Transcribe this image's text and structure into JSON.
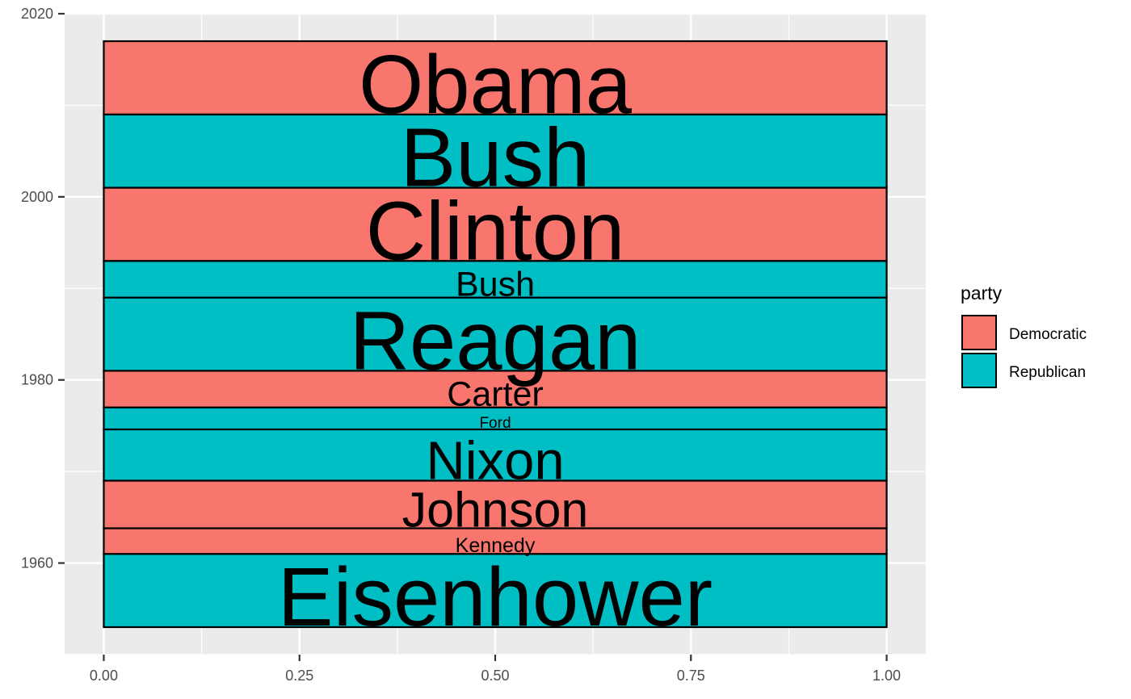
{
  "chart_data": {
    "type": "bar",
    "orientation": "horizontal-bands",
    "title": "",
    "xlabel": "",
    "ylabel": "",
    "xlim": [
      -0.05,
      1.05
    ],
    "ylim": [
      1950,
      2020
    ],
    "x_ticks": [
      0.0,
      0.25,
      0.5,
      0.75,
      1.0
    ],
    "x_tick_labels": [
      "0.00",
      "0.25",
      "0.50",
      "0.75",
      "1.00"
    ],
    "y_ticks": [
      1960,
      1980,
      2000,
      2020
    ],
    "y_tick_labels": [
      "1960",
      "1980",
      "2000",
      "2020"
    ],
    "grid": true,
    "legend": {
      "title": "party",
      "position": "right",
      "entries": [
        {
          "label": "Democratic",
          "color": "#F8766D"
        },
        {
          "label": "Republican",
          "color": "#00BFC4"
        }
      ]
    },
    "fills": {
      "Democratic": "#F8766D",
      "Republican": "#00BFC4"
    },
    "bars": [
      {
        "name": "Eisenhower",
        "party": "Republican",
        "start": 1953,
        "end": 1961
      },
      {
        "name": "Kennedy",
        "party": "Democratic",
        "start": 1961,
        "end": 1963.8
      },
      {
        "name": "Johnson",
        "party": "Democratic",
        "start": 1963.8,
        "end": 1969
      },
      {
        "name": "Nixon",
        "party": "Republican",
        "start": 1969,
        "end": 1974.6
      },
      {
        "name": "Ford",
        "party": "Republican",
        "start": 1974.6,
        "end": 1977
      },
      {
        "name": "Carter",
        "party": "Democratic",
        "start": 1977,
        "end": 1981
      },
      {
        "name": "Reagan",
        "party": "Republican",
        "start": 1981,
        "end": 1989
      },
      {
        "name": "Bush",
        "party": "Republican",
        "start": 1989,
        "end": 1993
      },
      {
        "name": "Clinton",
        "party": "Democratic",
        "start": 1993,
        "end": 2001
      },
      {
        "name": "Bush",
        "party": "Republican",
        "start": 2001,
        "end": 2009
      },
      {
        "name": "Obama",
        "party": "Democratic",
        "start": 2009,
        "end": 2017
      }
    ]
  }
}
